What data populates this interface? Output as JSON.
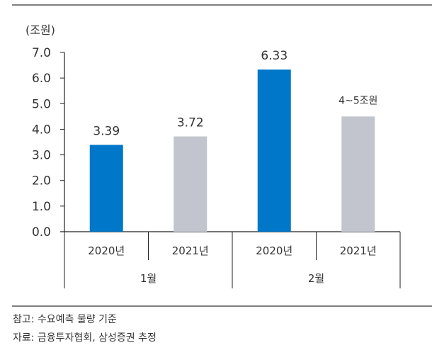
{
  "chart_data": {
    "type": "bar",
    "unit_label": "(조원)",
    "categories": [
      "2020년",
      "2021년",
      "2020년",
      "2021년"
    ],
    "groups": [
      {
        "label": "1월",
        "span": 2
      },
      {
        "label": "2월",
        "span": 2
      }
    ],
    "values": [
      3.39,
      3.72,
      6.33,
      4.5
    ],
    "data_labels": [
      "3.39",
      "3.72",
      "6.33",
      "4~5조원"
    ],
    "colors": [
      "#0077C8",
      "#C3C5CE",
      "#0077C8",
      "#C3C5CE"
    ],
    "ylim": [
      0,
      7
    ],
    "yticks": [
      "0.0",
      "1.0",
      "2.0",
      "3.0",
      "4.0",
      "5.0",
      "6.0",
      "7.0"
    ],
    "grid": false
  },
  "notes": {
    "reference": "참고: 수요예측 물량 기준",
    "source": "자료: 금융투자협회, 삼성증권 추정"
  }
}
